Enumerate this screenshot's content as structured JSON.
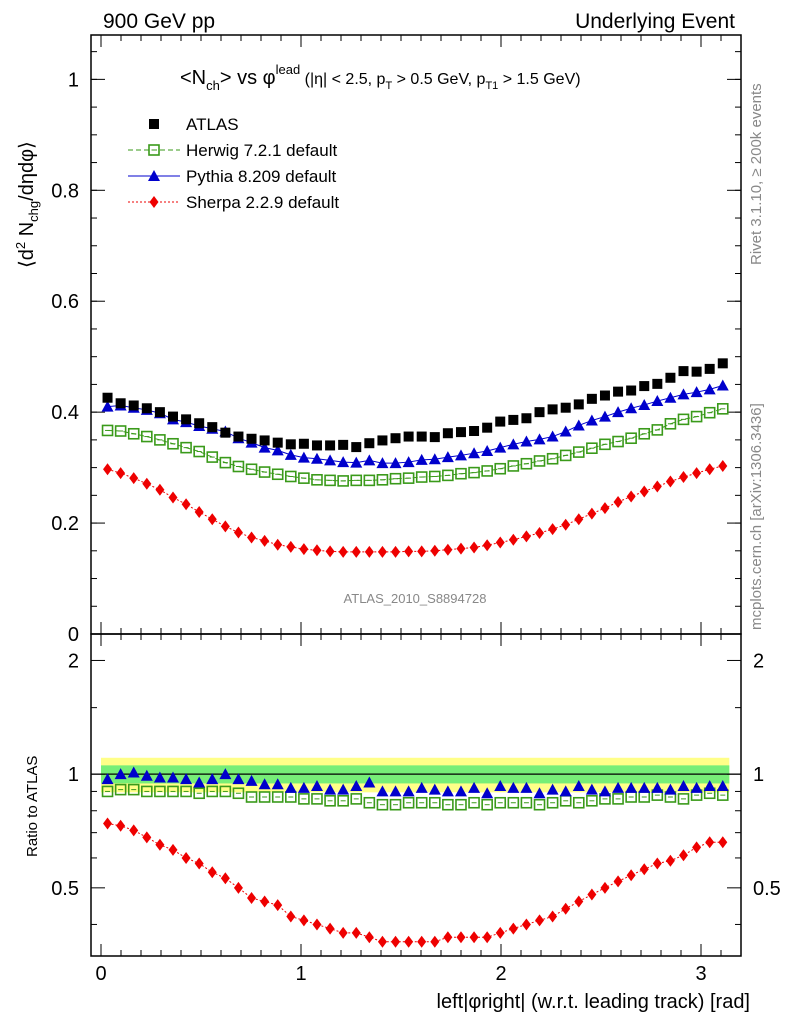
{
  "header": {
    "left": "900 GeV pp",
    "right": "Underlying Event"
  },
  "side_labels": {
    "upper": "Rivet 3.1.10, ≥ 200k events",
    "lower": "mcplots.cern.ch [arXiv:1306.3436]"
  },
  "chart_data": [
    {
      "type": "scatter",
      "panel": "main",
      "title": "<N_ch> vs φ^lead (|η| < 2.5, p_T > 0.5 GeV, p_T1 > 1.5 GeV)",
      "ylabel": "⟨d² N_chg/dηdφ⟩",
      "watermark": "ATLAS_2010_S8894728",
      "xlim": [
        -0.05,
        3.2
      ],
      "ylim": [
        0,
        1.08
      ],
      "yticks": [
        0,
        0.2,
        0.4,
        0.6,
        0.8,
        1
      ],
      "ytick_labels": [
        "0",
        "0.2",
        "0.4",
        "0.6",
        "0.8",
        "1"
      ],
      "legend_position": "top-left",
      "x": [
        0.0327,
        0.0982,
        0.1636,
        0.2291,
        0.2945,
        0.36,
        0.4254,
        0.4909,
        0.5563,
        0.6218,
        0.6872,
        0.7527,
        0.8181,
        0.8836,
        0.949,
        1.0145,
        1.0799,
        1.1454,
        1.2108,
        1.2763,
        1.3417,
        1.4072,
        1.4726,
        1.5381,
        1.6035,
        1.669,
        1.7344,
        1.7999,
        1.8653,
        1.9308,
        1.9962,
        2.0617,
        2.1271,
        2.1926,
        2.258,
        2.3235,
        2.3889,
        2.4544,
        2.5198,
        2.5853,
        2.6507,
        2.7162,
        2.7816,
        2.8471,
        2.9125,
        2.978,
        3.0434,
        3.1089
      ],
      "series": [
        {
          "name": "ATLAS",
          "color": "#000000",
          "marker": "square",
          "values": [
            0.426,
            0.416,
            0.412,
            0.407,
            0.4,
            0.392,
            0.387,
            0.38,
            0.373,
            0.363,
            0.356,
            0.352,
            0.349,
            0.345,
            0.342,
            0.343,
            0.34,
            0.34,
            0.341,
            0.337,
            0.344,
            0.349,
            0.353,
            0.356,
            0.356,
            0.355,
            0.362,
            0.364,
            0.366,
            0.372,
            0.383,
            0.386,
            0.389,
            0.4,
            0.405,
            0.408,
            0.414,
            0.424,
            0.43,
            0.437,
            0.439,
            0.447,
            0.451,
            0.462,
            0.474,
            0.473,
            0.478,
            0.488
          ]
        },
        {
          "name": "Herwig 7.2.1 default",
          "color": "#3a9a1a",
          "marker": "open-square",
          "line": "dashed",
          "values": [
            0.367,
            0.366,
            0.361,
            0.356,
            0.35,
            0.343,
            0.336,
            0.329,
            0.319,
            0.309,
            0.302,
            0.297,
            0.292,
            0.288,
            0.284,
            0.281,
            0.278,
            0.277,
            0.276,
            0.277,
            0.277,
            0.278,
            0.28,
            0.281,
            0.283,
            0.284,
            0.286,
            0.289,
            0.291,
            0.294,
            0.298,
            0.303,
            0.307,
            0.312,
            0.316,
            0.322,
            0.328,
            0.335,
            0.342,
            0.347,
            0.353,
            0.361,
            0.368,
            0.379,
            0.387,
            0.392,
            0.399,
            0.406
          ]
        },
        {
          "name": "Pythia 8.209 default",
          "color": "#0000cc",
          "marker": "triangle",
          "line": "solid",
          "values": [
            0.41,
            0.412,
            0.408,
            0.404,
            0.398,
            0.387,
            0.382,
            0.375,
            0.37,
            0.365,
            0.353,
            0.345,
            0.336,
            0.331,
            0.323,
            0.318,
            0.316,
            0.313,
            0.31,
            0.309,
            0.313,
            0.308,
            0.308,
            0.31,
            0.314,
            0.315,
            0.319,
            0.322,
            0.326,
            0.33,
            0.336,
            0.342,
            0.347,
            0.351,
            0.356,
            0.365,
            0.376,
            0.385,
            0.392,
            0.4,
            0.407,
            0.413,
            0.42,
            0.426,
            0.432,
            0.436,
            0.441,
            0.448
          ]
        },
        {
          "name": "Sherpa 2.2.9 default",
          "color": "#ee0000",
          "marker": "diamond",
          "line": "dotted",
          "values": [
            0.297,
            0.29,
            0.281,
            0.271,
            0.26,
            0.246,
            0.234,
            0.22,
            0.207,
            0.194,
            0.183,
            0.174,
            0.168,
            0.161,
            0.157,
            0.153,
            0.151,
            0.149,
            0.148,
            0.148,
            0.148,
            0.148,
            0.148,
            0.149,
            0.149,
            0.15,
            0.152,
            0.154,
            0.156,
            0.16,
            0.165,
            0.17,
            0.176,
            0.182,
            0.189,
            0.197,
            0.207,
            0.217,
            0.227,
            0.238,
            0.248,
            0.257,
            0.266,
            0.275,
            0.283,
            0.29,
            0.297,
            0.303
          ]
        }
      ]
    },
    {
      "type": "scatter",
      "panel": "ratio",
      "xlabel": "left|φright| (w.r.t. leading track) [rad]",
      "ylabel": "Ratio to ATLAS",
      "xlim": [
        -0.05,
        3.2
      ],
      "ylim": [
        0.33,
        2.35
      ],
      "xticks": [
        0,
        1,
        2,
        3
      ],
      "xtick_labels": [
        "0",
        "1",
        "2",
        "3"
      ],
      "yticks": [
        0.5,
        1,
        2
      ],
      "ytick_labels": [
        "0.5",
        "1",
        "2"
      ],
      "reference_line": 1,
      "uncertainty_band": {
        "outer": [
          0.895,
          1.105
        ],
        "inner": [
          0.945,
          1.055
        ],
        "outer_color": "#ffff88",
        "inner_color": "#77ee77"
      },
      "x": [
        0.0327,
        0.0982,
        0.1636,
        0.2291,
        0.2945,
        0.36,
        0.4254,
        0.4909,
        0.5563,
        0.6218,
        0.6872,
        0.7527,
        0.8181,
        0.8836,
        0.949,
        1.0145,
        1.0799,
        1.1454,
        1.2108,
        1.2763,
        1.3417,
        1.4072,
        1.4726,
        1.5381,
        1.6035,
        1.669,
        1.7344,
        1.7999,
        1.8653,
        1.9308,
        1.9962,
        2.0617,
        2.1271,
        2.1926,
        2.258,
        2.3235,
        2.3889,
        2.4544,
        2.5198,
        2.5853,
        2.6507,
        2.7162,
        2.7816,
        2.8471,
        2.9125,
        2.978,
        3.0434,
        3.1089
      ],
      "series": [
        {
          "name": "Herwig 7.2.1 default",
          "color": "#3a9a1a",
          "marker": "open-square",
          "values": [
            0.9,
            0.91,
            0.91,
            0.9,
            0.9,
            0.9,
            0.9,
            0.89,
            0.9,
            0.9,
            0.89,
            0.87,
            0.87,
            0.87,
            0.87,
            0.86,
            0.86,
            0.85,
            0.85,
            0.86,
            0.84,
            0.83,
            0.83,
            0.84,
            0.84,
            0.84,
            0.83,
            0.83,
            0.84,
            0.83,
            0.84,
            0.84,
            0.84,
            0.83,
            0.84,
            0.85,
            0.84,
            0.85,
            0.86,
            0.86,
            0.87,
            0.87,
            0.88,
            0.87,
            0.86,
            0.88,
            0.89,
            0.88
          ]
        },
        {
          "name": "Pythia 8.209 default",
          "color": "#0000cc",
          "marker": "triangle",
          "values": [
            0.97,
            1.0,
            1.01,
            0.99,
            0.98,
            0.98,
            0.97,
            0.95,
            0.97,
            1.0,
            0.97,
            0.96,
            0.94,
            0.94,
            0.92,
            0.92,
            0.93,
            0.91,
            0.91,
            0.93,
            0.95,
            0.9,
            0.9,
            0.9,
            0.92,
            0.91,
            0.9,
            0.9,
            0.92,
            0.89,
            0.93,
            0.92,
            0.92,
            0.89,
            0.91,
            0.9,
            0.93,
            0.91,
            0.9,
            0.92,
            0.92,
            0.92,
            0.92,
            0.91,
            0.93,
            0.92,
            0.93,
            0.93
          ]
        },
        {
          "name": "Sherpa 2.2.9 default",
          "color": "#ee0000",
          "marker": "diamond",
          "line": "dotted",
          "values": [
            0.74,
            0.73,
            0.71,
            0.68,
            0.65,
            0.63,
            0.6,
            0.58,
            0.55,
            0.53,
            0.5,
            0.47,
            0.46,
            0.45,
            0.42,
            0.41,
            0.4,
            0.39,
            0.38,
            0.38,
            0.37,
            0.36,
            0.36,
            0.36,
            0.36,
            0.36,
            0.37,
            0.37,
            0.37,
            0.37,
            0.38,
            0.39,
            0.4,
            0.41,
            0.42,
            0.44,
            0.46,
            0.48,
            0.5,
            0.52,
            0.54,
            0.56,
            0.58,
            0.59,
            0.61,
            0.64,
            0.66,
            0.66
          ]
        }
      ]
    }
  ]
}
